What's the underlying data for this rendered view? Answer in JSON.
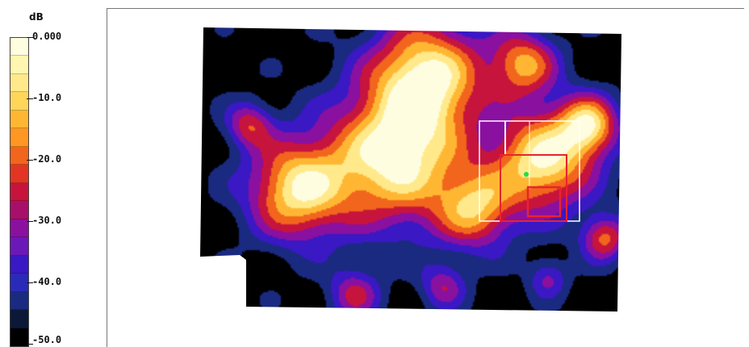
{
  "legend": {
    "unit": "dB",
    "ticks": [
      "0.000",
      "-10.0",
      "-20.0",
      "-30.0",
      "-40.0",
      "-50.0"
    ],
    "colors": [
      "#fffde0",
      "#fff7b0",
      "#ffe98a",
      "#ffd55a",
      "#ffb733",
      "#ff9722",
      "#f2651c",
      "#e23524",
      "#c7143d",
      "#a80f6a",
      "#8a10a0",
      "#6a18b8",
      "#3a18c4",
      "#2a2ab8",
      "#1a2a80",
      "#0c1838",
      "#000000"
    ]
  },
  "heatmap": {
    "colormap": [
      "#000000",
      "#1a2a80",
      "#3a18c4",
      "#8a10a0",
      "#c7143d",
      "#f2651c",
      "#ffb733",
      "#ffe98a",
      "#fffde0"
    ]
  }
}
